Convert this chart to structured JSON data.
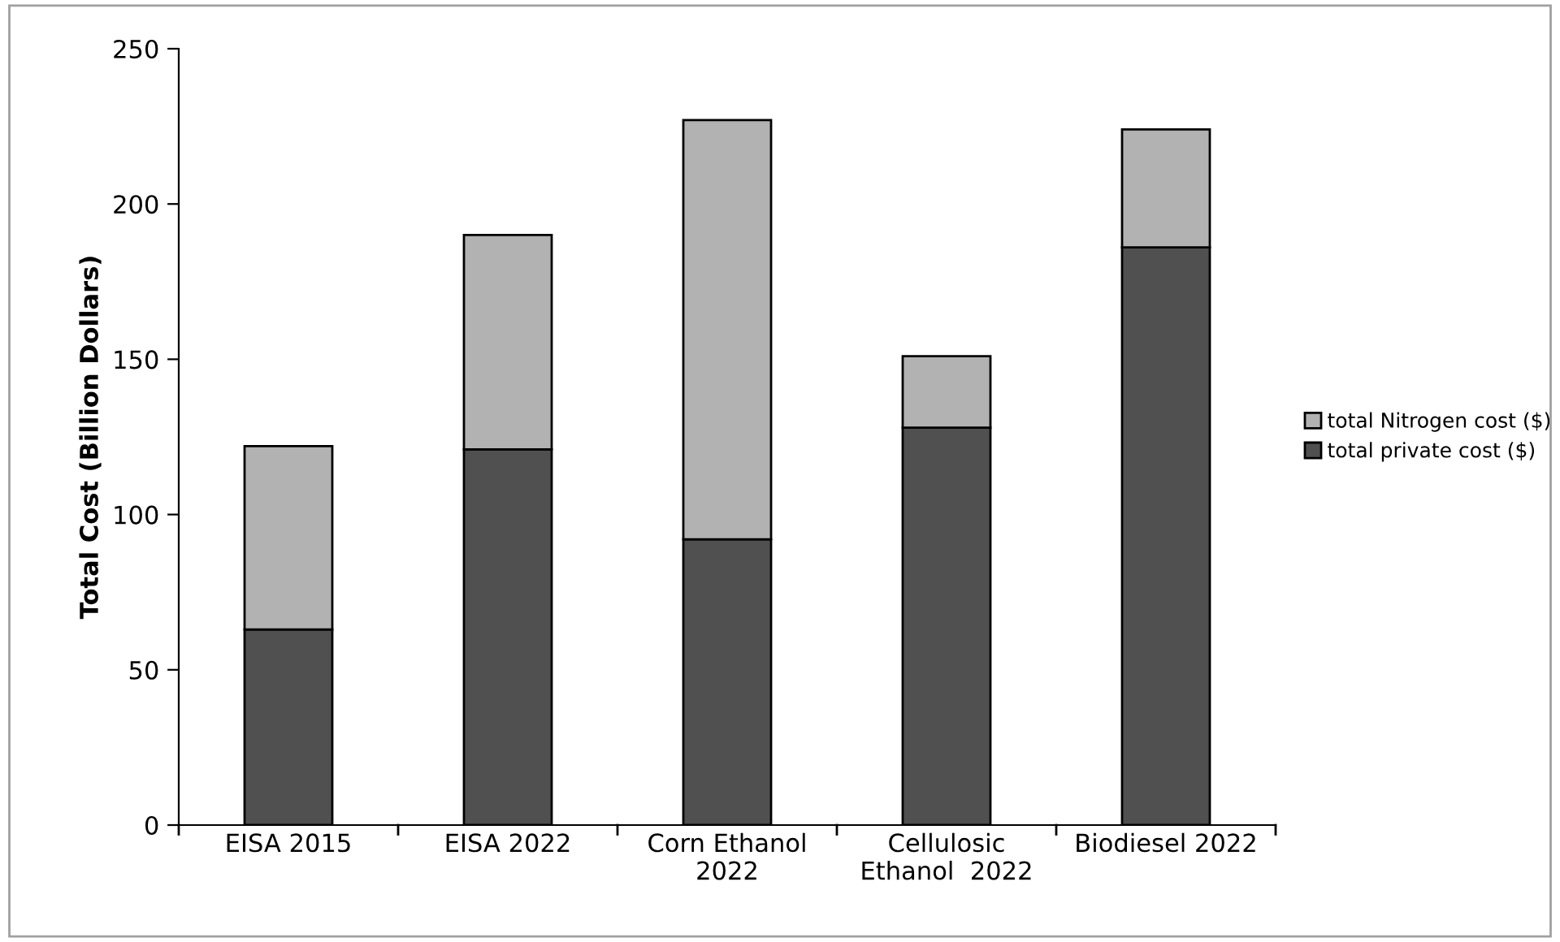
{
  "chart_data": {
    "type": "bar",
    "stacked": true,
    "ylabel": "Total Cost (Billion Dollars)",
    "categories": [
      "EISA 2015",
      "EISA 2022",
      "Corn Ethanol\n2022",
      "Cellulosic\nEthanol  2022",
      "Biodiesel 2022"
    ],
    "series": [
      {
        "name": "total private cost ($)",
        "color": "#505050",
        "values": [
          63,
          121,
          92,
          128,
          186
        ]
      },
      {
        "name": "total Nitrogen cost ($)",
        "color": "#b2b2b2",
        "values": [
          59,
          69,
          135,
          23,
          38
        ]
      }
    ],
    "ylim": [
      0,
      250
    ],
    "yticks": [
      0,
      50,
      100,
      150,
      200,
      250
    ],
    "grid": false,
    "legend": "right"
  }
}
